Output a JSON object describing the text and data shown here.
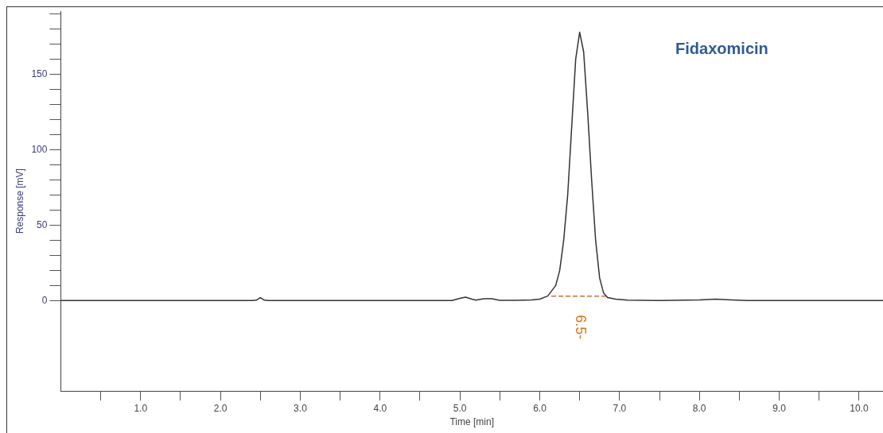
{
  "chart_data": {
    "type": "line",
    "title": "Fidaxomicin",
    "xlabel": "Time [min]",
    "ylabel": "Response [mV]",
    "xlim": [
      0,
      10.3
    ],
    "ylim": [
      -60,
      192
    ],
    "xticks": [
      {
        "value": 0.5,
        "label": null
      },
      {
        "value": 1,
        "label": "1.0"
      },
      {
        "value": 1.5,
        "label": null
      },
      {
        "value": 2,
        "label": "2.0"
      },
      {
        "value": 2.5,
        "label": null
      },
      {
        "value": 3,
        "label": "3.0"
      },
      {
        "value": 3.5,
        "label": null
      },
      {
        "value": 4,
        "label": "4.0"
      },
      {
        "value": 4.5,
        "label": null
      },
      {
        "value": 5,
        "label": "5.0"
      },
      {
        "value": 5.5,
        "label": null
      },
      {
        "value": 6,
        "label": "6.0"
      },
      {
        "value": 6.5,
        "label": null
      },
      {
        "value": 7,
        "label": "7.0"
      },
      {
        "value": 7.5,
        "label": null
      },
      {
        "value": 8,
        "label": "8.0"
      },
      {
        "value": 8.5,
        "label": null
      },
      {
        "value": 9,
        "label": "9.0"
      },
      {
        "value": 9.5,
        "label": null
      },
      {
        "value": 10,
        "label": "10.0"
      }
    ],
    "yticks": [
      0,
      {
        "value": 10,
        "label": null
      },
      {
        "value": 20,
        "label": null
      },
      {
        "value": 30,
        "label": null
      },
      {
        "value": 40,
        "label": null
      },
      50,
      {
        "value": 60,
        "label": null
      },
      {
        "value": 70,
        "label": null
      },
      {
        "value": 80,
        "label": null
      },
      {
        "value": 90,
        "label": null
      },
      100,
      {
        "value": 110,
        "label": null
      },
      {
        "value": 120,
        "label": null
      },
      {
        "value": 130,
        "label": null
      },
      {
        "value": 140,
        "label": null
      },
      150,
      {
        "value": 160,
        "label": null
      },
      {
        "value": 170,
        "label": null
      },
      {
        "value": 180,
        "label": null
      },
      {
        "value": 190,
        "label": null
      }
    ],
    "grid": false,
    "legend": false,
    "marker": "none",
    "annotations": [
      "6.5-"
    ],
    "series": [
      {
        "color": "#333333",
        "x": [
          0,
          2.4,
          2.45,
          2.5,
          2.55,
          2.6,
          4.9,
          5.0,
          5.07,
          5.15,
          5.2,
          5.3,
          5.4,
          5.5,
          5.7,
          5.9,
          6.0,
          6.1,
          6.2,
          6.25,
          6.3,
          6.35,
          6.4,
          6.45,
          6.5,
          6.55,
          6.6,
          6.65,
          6.7,
          6.75,
          6.8,
          6.85,
          6.95,
          7.1,
          7.5,
          8.0,
          8.2,
          8.4,
          8.6,
          10.3
        ],
        "values": [
          0,
          0,
          0.3,
          2,
          0.3,
          0,
          0,
          1.5,
          2.3,
          1,
          0.3,
          1.2,
          1.2,
          0.2,
          0.2,
          0.5,
          1,
          3,
          10,
          20,
          40,
          70,
          115,
          160,
          178,
          165,
          125,
          80,
          40,
          15,
          5,
          2,
          1,
          0.3,
          0,
          0.5,
          1,
          0.5,
          0,
          0
        ]
      },
      {
        "color": "#c8703c",
        "line_style": "dashed",
        "x": [
          6.15,
          6.85
        ],
        "values": [
          3,
          3
        ]
      }
    ]
  }
}
